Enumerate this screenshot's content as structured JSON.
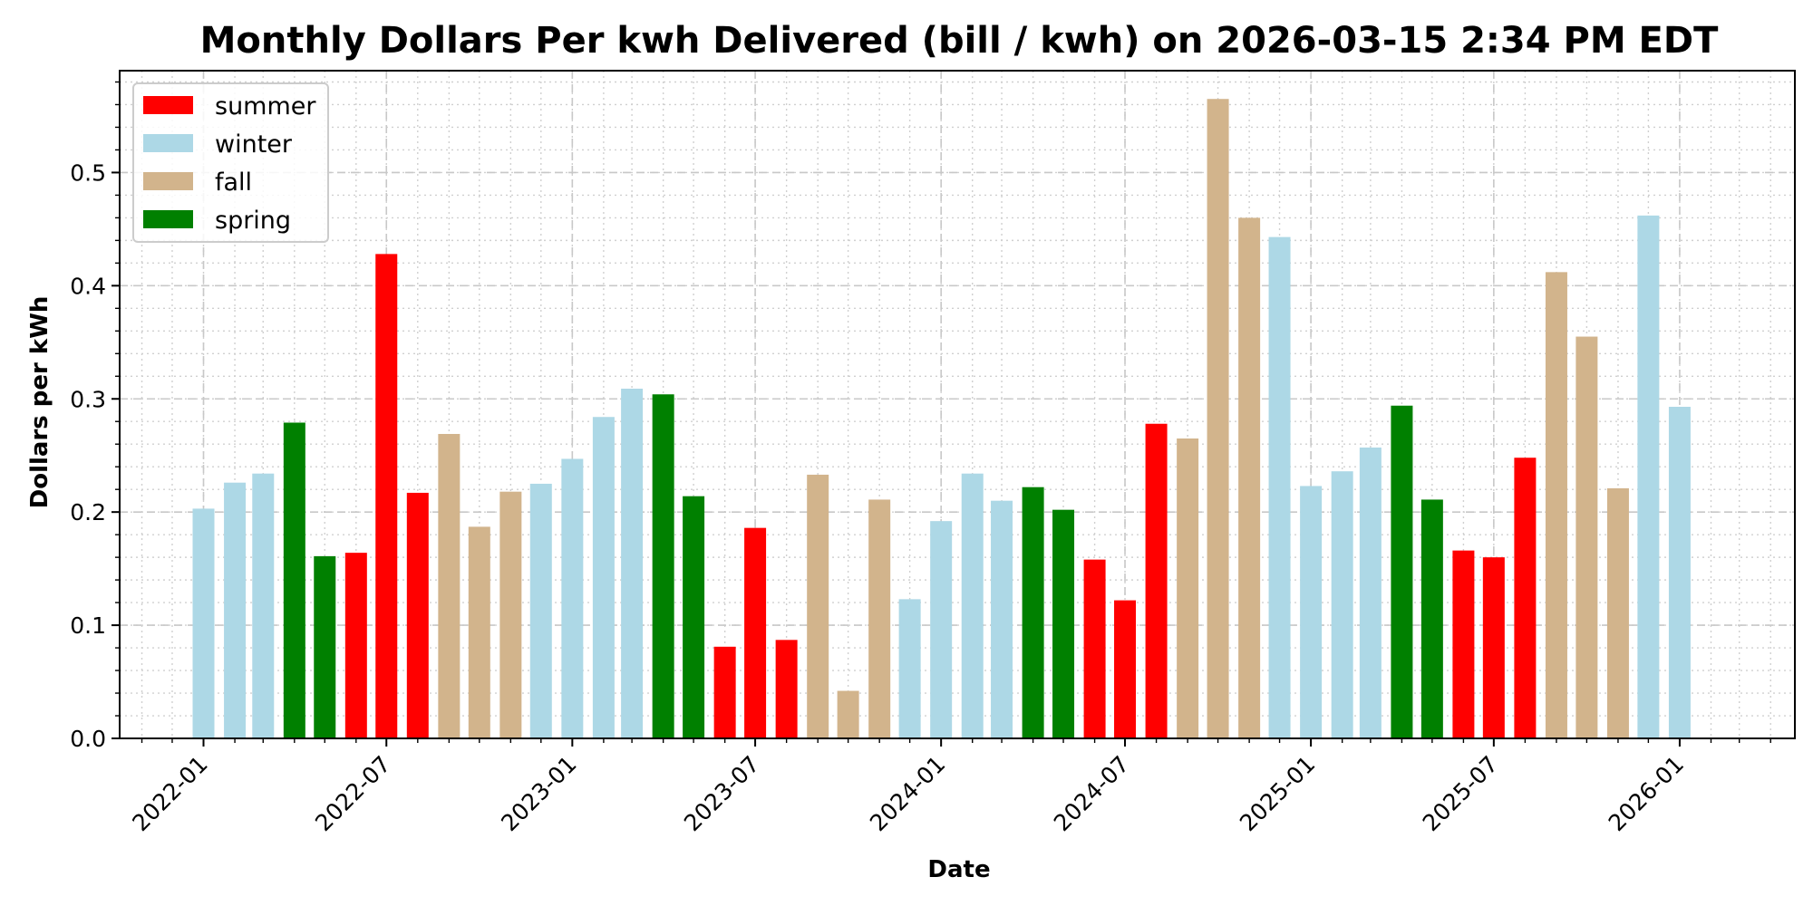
{
  "chart_data": {
    "type": "bar",
    "title": "Monthly Dollars Per kwh Delivered (bill / kwh) on 2026-03-15 2:34 PM EDT",
    "xlabel": "Date",
    "ylabel": "Dollars per kWh",
    "ylim": [
      0,
      0.59
    ],
    "xlim": [
      "2021-10-10",
      "2026-04-25"
    ],
    "grid": true,
    "legend_position": "top-left",
    "y_ticks": [
      "0.0",
      "0.1",
      "0.2",
      "0.3",
      "0.4",
      "0.5"
    ],
    "x_ticks": [
      "2022-01",
      "2022-07",
      "2023-01",
      "2023-07",
      "2024-01",
      "2024-07",
      "2025-01",
      "2025-07",
      "2026-01"
    ],
    "legend": [
      {
        "label": "summer",
        "color": "#ff0000"
      },
      {
        "label": "winter",
        "color": "#add8e6"
      },
      {
        "label": "fall",
        "color": "#d2b48c"
      },
      {
        "label": "spring",
        "color": "#008000"
      }
    ],
    "categories": [
      "2022-01",
      "2022-02",
      "2022-03",
      "2022-04",
      "2022-05",
      "2022-06",
      "2022-07",
      "2022-08",
      "2022-09",
      "2022-10",
      "2022-11",
      "2022-12",
      "2023-01",
      "2023-02",
      "2023-03",
      "2023-04",
      "2023-05",
      "2023-06",
      "2023-07",
      "2023-08",
      "2023-09",
      "2023-10",
      "2023-11",
      "2023-12",
      "2024-01",
      "2024-02",
      "2024-03",
      "2024-04",
      "2024-05",
      "2024-06",
      "2024-07",
      "2024-08",
      "2024-09",
      "2024-10",
      "2024-11",
      "2024-12",
      "2025-01",
      "2025-02",
      "2025-03",
      "2025-04",
      "2025-05",
      "2025-06",
      "2025-07",
      "2025-08",
      "2025-09",
      "2025-10",
      "2025-11",
      "2025-12"
    ],
    "values": [
      0.203,
      0.226,
      0.234,
      0.279,
      0.161,
      0.164,
      0.428,
      0.217,
      0.269,
      0.187,
      0.218,
      0.225,
      0.247,
      0.284,
      0.309,
      0.304,
      0.214,
      0.081,
      0.186,
      0.087,
      0.233,
      0.042,
      0.211,
      0.123,
      0.192,
      0.234,
      0.21,
      0.222,
      0.202,
      0.158,
      0.122,
      0.278,
      0.265,
      0.565,
      0.46,
      0.443,
      0.223,
      0.236,
      0.257,
      0.294,
      0.211,
      0.166,
      0.16,
      0.248,
      0.412,
      0.355,
      0.221,
      0.462
    ],
    "seasons": [
      "winter",
      "winter",
      "winter",
      "spring",
      "spring",
      "summer",
      "summer",
      "summer",
      "fall",
      "fall",
      "fall",
      "winter",
      "winter",
      "winter",
      "winter",
      "spring",
      "spring",
      "summer",
      "summer",
      "summer",
      "fall",
      "fall",
      "fall",
      "winter",
      "winter",
      "winter",
      "winter",
      "spring",
      "spring",
      "summer",
      "summer",
      "summer",
      "fall",
      "fall",
      "fall",
      "winter",
      "winter",
      "winter",
      "winter",
      "spring",
      "spring",
      "summer",
      "summer",
      "summer",
      "fall",
      "fall",
      "fall",
      "winter"
    ],
    "extra_point": {
      "date": "2026-01",
      "value": 0.293,
      "season": "winter"
    }
  }
}
